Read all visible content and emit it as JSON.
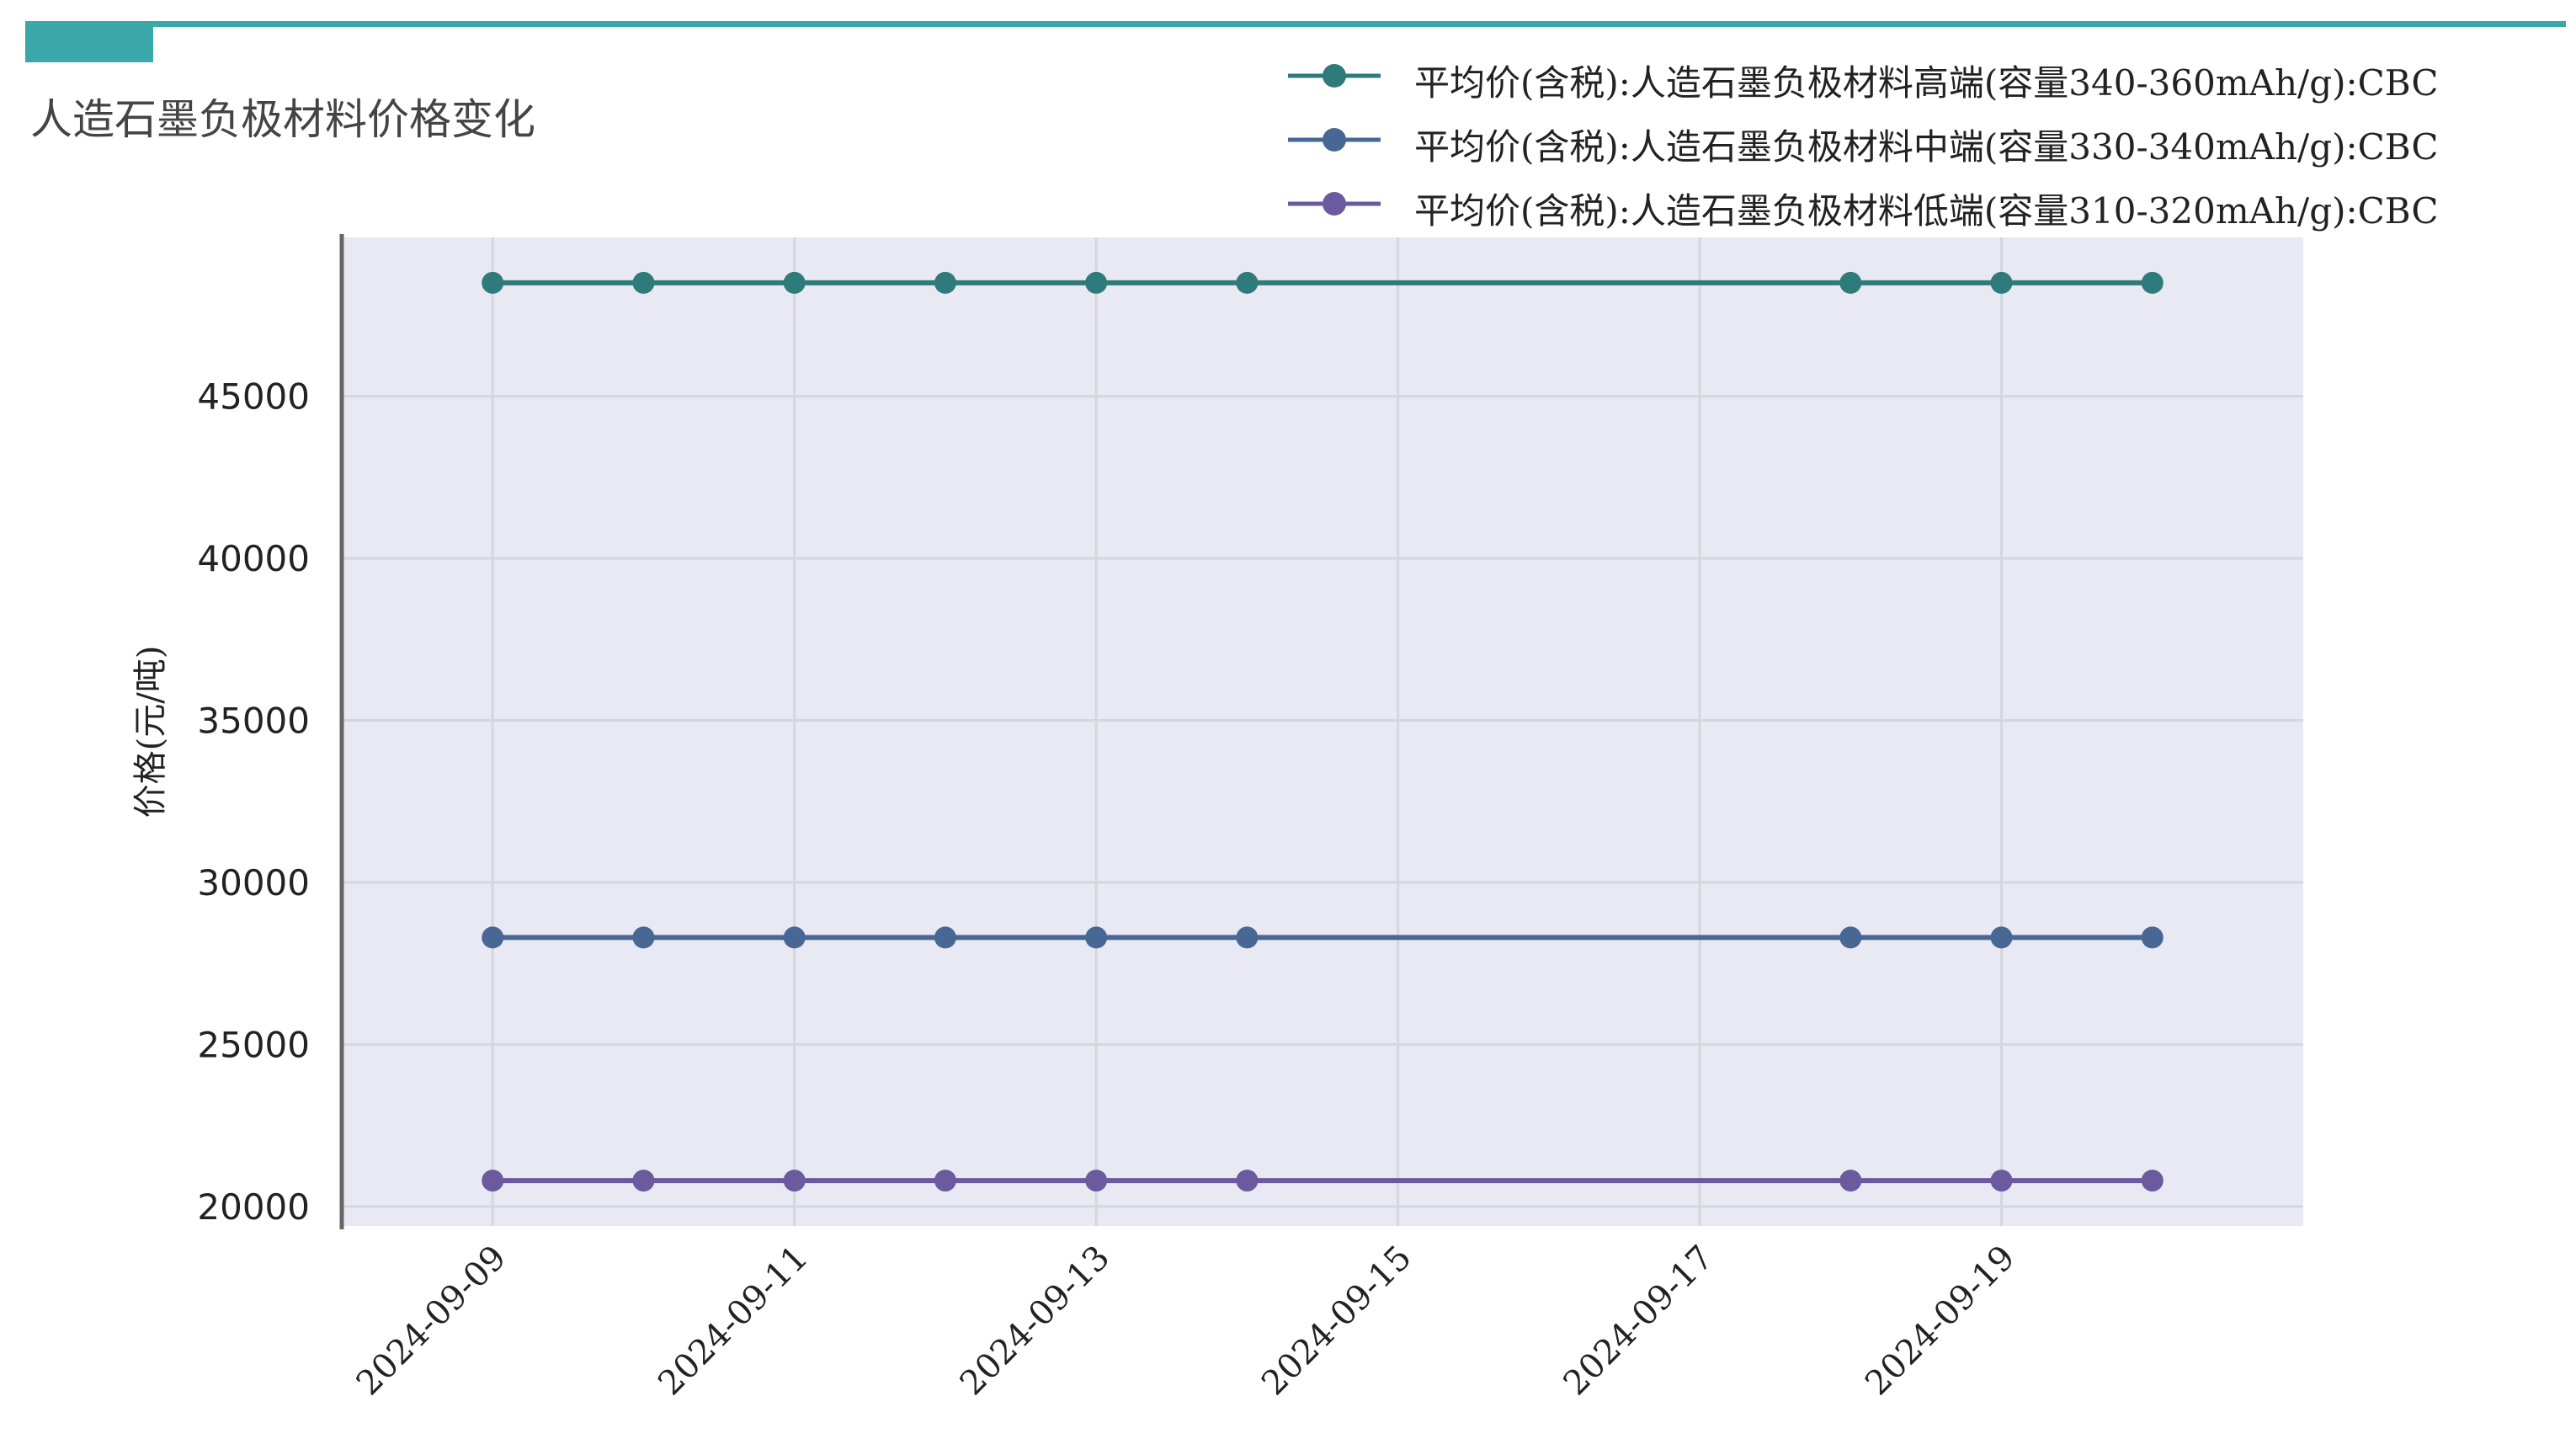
{
  "page": {
    "title": "人造石墨负极材料价格变化",
    "accent_color": "#3aa8a8"
  },
  "chart_data": {
    "type": "line",
    "title": "人造石墨负极材料价格变化",
    "xlabel": "",
    "ylabel": "价格(元/吨)",
    "x": [
      "2024-09-09",
      "2024-09-10",
      "2024-09-11",
      "2024-09-12",
      "2024-09-13",
      "2024-09-14",
      "2024-09-18",
      "2024-09-19",
      "2024-09-20"
    ],
    "x_ticks": [
      "2024-09-09",
      "2024-09-11",
      "2024-09-13",
      "2024-09-15",
      "2024-09-17",
      "2024-09-19"
    ],
    "xlim": [
      "2024-09-08",
      "2024-09-21"
    ],
    "y_ticks": [
      20000,
      25000,
      30000,
      35000,
      40000,
      45000
    ],
    "ylim": [
      19400,
      49900
    ],
    "grid": true,
    "background": "#e8e9f2",
    "legend_position": "top-right",
    "series": [
      {
        "name": "平均价(含税):人造石墨负极材料高端(容量340-360mAh/g):CBC",
        "color": "#2f7a7a",
        "values": [
          48500,
          48500,
          48500,
          48500,
          48500,
          48500,
          48500,
          48500,
          48500
        ]
      },
      {
        "name": "平均价(含税):人造石墨负极材料中端(容量330-340mAh/g):CBC",
        "color": "#486795",
        "values": [
          28300,
          28300,
          28300,
          28300,
          28300,
          28300,
          28300,
          28300,
          28300
        ]
      },
      {
        "name": "平均价(含税):人造石墨负极材料低端(容量310-320mAh/g):CBC",
        "color": "#6b5a9e",
        "values": [
          20800,
          20800,
          20800,
          20800,
          20800,
          20800,
          20800,
          20800,
          20800
        ]
      }
    ]
  }
}
